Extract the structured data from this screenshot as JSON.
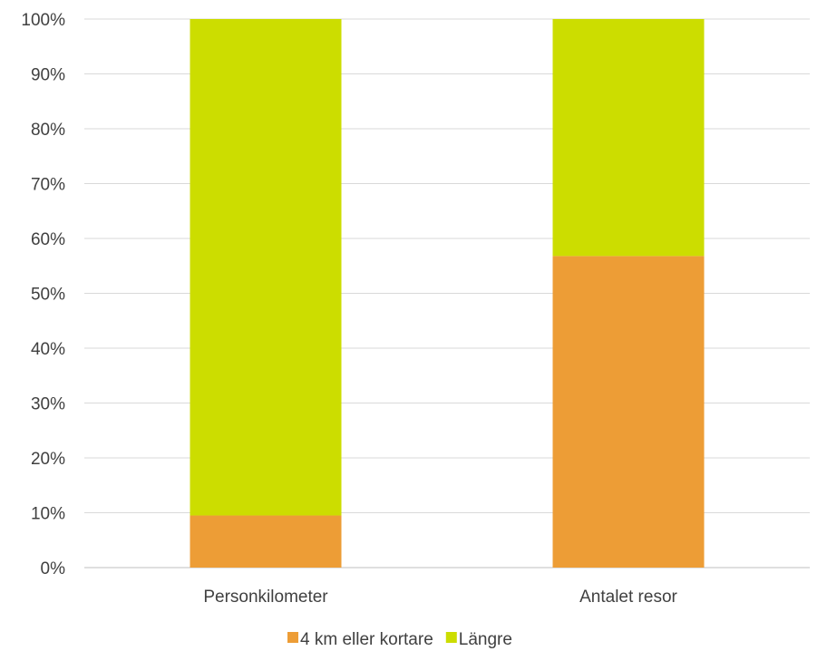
{
  "chart_data": {
    "type": "bar",
    "stacked": true,
    "categories": [
      "Personkilometer",
      "Antalet resor"
    ],
    "series": [
      {
        "name": "4 km eller kortare",
        "values": [
          9.5,
          56.8
        ],
        "color": "#ED9D36"
      },
      {
        "name": "Längre",
        "values": [
          90.5,
          43.2
        ],
        "color": "#CCDD00"
      }
    ],
    "ylim": [
      0,
      100
    ],
    "yticks": [
      "0%",
      "10%",
      "20%",
      "30%",
      "40%",
      "50%",
      "60%",
      "70%",
      "80%",
      "90%",
      "100%"
    ],
    "grid": true,
    "gridline_color": "#D9D9D9",
    "legend_placement": "bottom"
  }
}
